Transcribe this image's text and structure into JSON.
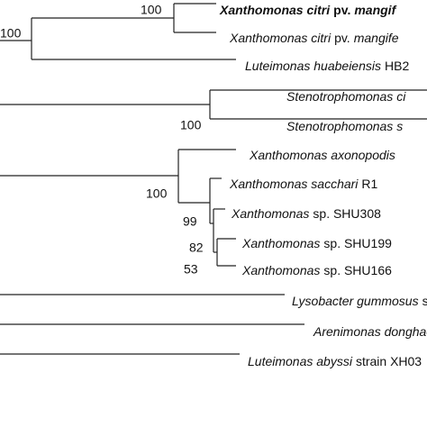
{
  "leaves": [
    {
      "bold": true,
      "segments": [
        {
          "text": "Xanthomonas citri",
          "italic": true
        },
        {
          "text": "pv.",
          "italic": false
        },
        {
          "text": "mangif",
          "italic": true
        }
      ]
    },
    {
      "segments": [
        {
          "text": "Xanthomonas citri",
          "italic": true
        },
        {
          "text": "pv.",
          "italic": false
        },
        {
          "text": "mangife",
          "italic": true
        }
      ]
    },
    {
      "segments": [
        {
          "text": "Luteimonas huabeiensis",
          "italic": true
        },
        {
          "text": "HB2",
          "italic": false
        }
      ]
    },
    {
      "segments": [
        {
          "text": "Stenotrophomonas ci",
          "italic": true
        }
      ]
    },
    {
      "segments": [
        {
          "text": "Stenotrophomonas s",
          "italic": true
        }
      ]
    },
    {
      "segments": [
        {
          "text": "Xanthomonas axonopodis",
          "italic": true
        }
      ]
    },
    {
      "segments": [
        {
          "text": "Xanthomonas sacchari",
          "italic": true
        },
        {
          "text": "R1",
          "italic": false
        }
      ]
    },
    {
      "segments": [
        {
          "text": "Xanthomonas",
          "italic": true
        },
        {
          "text": "sp. SHU308",
          "italic": false
        }
      ]
    },
    {
      "segments": [
        {
          "text": "Xanthomonas",
          "italic": true
        },
        {
          "text": "sp. SHU199",
          "italic": false
        }
      ]
    },
    {
      "segments": [
        {
          "text": "Xanthomonas",
          "italic": true
        },
        {
          "text": "sp. SHU166",
          "italic": false
        }
      ]
    },
    {
      "segments": [
        {
          "text": "Lysobacter gummosus",
          "italic": true
        },
        {
          "text": "s",
          "italic": false
        }
      ]
    },
    {
      "segments": [
        {
          "text": "Arenimonas donghae",
          "italic": true
        }
      ]
    },
    {
      "segments": [
        {
          "text": "Luteimonas abyssi",
          "italic": true
        },
        {
          "text": "strain XH03",
          "italic": false
        }
      ]
    }
  ],
  "bootstrap": [
    "100",
    "100",
    "100",
    "100",
    "99",
    "82",
    "53"
  ]
}
